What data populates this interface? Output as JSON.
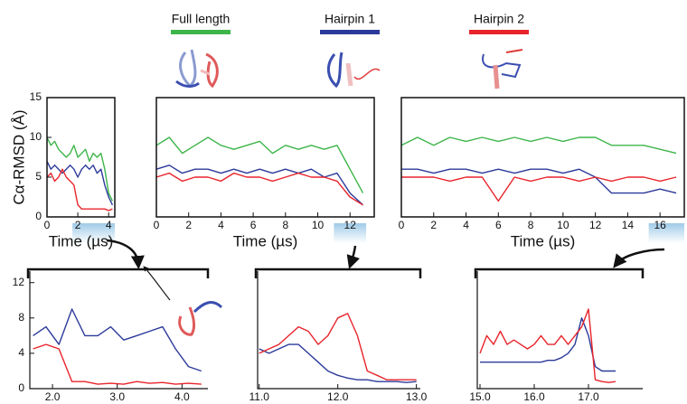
{
  "legend": [
    {
      "name": "Full length",
      "color": "#3db54a"
    },
    {
      "name": "Hairpin 1",
      "color": "#2b3a9a"
    },
    {
      "name": "Hairpin 2",
      "color": "#e8242b"
    }
  ],
  "chart_data": [
    {
      "type": "line",
      "xlabel": "Time (µs)",
      "ylabel": "Cα-RMSD (Å)",
      "x": [
        0,
        0.25,
        0.5,
        0.75,
        1,
        1.25,
        1.5,
        1.75,
        2,
        2.25,
        2.5,
        2.75,
        3,
        3.25,
        3.5,
        3.75,
        4,
        4.25
      ],
      "series": [
        {
          "color": "#3db54a",
          "values": [
            10,
            9,
            9.5,
            8.5,
            8,
            7.5,
            8,
            9,
            7.5,
            8,
            8.5,
            7,
            8,
            7.5,
            8,
            6,
            3,
            2
          ]
        },
        {
          "color": "#2b3a9a",
          "values": [
            7,
            6,
            6.5,
            6,
            5.5,
            6,
            6.5,
            6,
            5,
            6,
            6.5,
            6,
            6.5,
            5.5,
            6,
            4,
            2.5,
            1.5
          ]
        },
        {
          "color": "#e8242b",
          "values": [
            5,
            5.5,
            4.5,
            5,
            6,
            5,
            4.5,
            4,
            1.5,
            1,
            1,
            1,
            1,
            1,
            1,
            1,
            0.8,
            1
          ]
        }
      ],
      "xlim": [
        0,
        4.4
      ],
      "ylim": [
        0,
        15
      ],
      "xticks": [
        0,
        2,
        4
      ],
      "yticks": [
        0,
        5,
        10,
        15
      ],
      "highlight": [
        1.65,
        4.4
      ]
    },
    {
      "type": "line",
      "xlabel": "Time (µs)",
      "x": [
        0,
        0.8,
        1.6,
        2.4,
        3.2,
        4,
        4.8,
        5.6,
        6.4,
        7.2,
        8,
        8.8,
        9.6,
        10.4,
        11.2,
        12,
        12.8
      ],
      "series": [
        {
          "color": "#3db54a",
          "values": [
            9,
            10,
            8,
            9,
            10,
            9,
            8.5,
            9,
            9.5,
            8,
            9,
            8.5,
            9,
            8.5,
            9,
            6,
            3
          ]
        },
        {
          "color": "#2b3a9a",
          "values": [
            6,
            6.5,
            5.5,
            6,
            6,
            5.5,
            6,
            5.5,
            6,
            5.5,
            6,
            5.5,
            6,
            5,
            5.5,
            3,
            1.5
          ]
        },
        {
          "color": "#e8242b",
          "values": [
            5,
            5.5,
            4.5,
            5,
            5,
            4.5,
            5.5,
            5,
            5,
            4.5,
            5,
            5.5,
            5,
            5,
            4.5,
            2.5,
            1.5
          ]
        }
      ],
      "xlim": [
        0,
        13.5
      ],
      "ylim": [
        0,
        15
      ],
      "xticks": [
        0,
        2,
        4,
        6,
        8,
        10,
        12
      ],
      "highlight": [
        11,
        13
      ]
    },
    {
      "type": "line",
      "xlabel": "Time (µs)",
      "x": [
        0,
        1,
        2,
        3,
        4,
        5,
        6,
        7,
        8,
        9,
        10,
        11,
        12,
        13,
        14,
        15,
        16,
        17
      ],
      "series": [
        {
          "color": "#3db54a",
          "values": [
            9,
            10,
            9,
            10,
            9.5,
            10,
            9.5,
            10,
            9.5,
            10,
            9.5,
            10,
            10,
            9,
            9,
            9,
            8.5,
            8
          ]
        },
        {
          "color": "#2b3a9a",
          "values": [
            6,
            6,
            5.5,
            6,
            6,
            5.5,
            6,
            5.5,
            6,
            6,
            5.5,
            6,
            5,
            3,
            3,
            3,
            3.5,
            3
          ]
        },
        {
          "color": "#e8242b",
          "values": [
            5,
            5,
            5,
            4.5,
            5,
            5,
            2,
            5,
            4.5,
            5,
            5,
            4.5,
            5,
            4.5,
            5,
            5,
            4.5,
            5
          ]
        }
      ],
      "xlim": [
        0,
        17.5
      ],
      "ylim": [
        0,
        15
      ],
      "xticks": [
        0,
        2,
        4,
        6,
        8,
        10,
        12,
        14,
        16
      ],
      "highlight": [
        15.3,
        18
      ]
    },
    {
      "type": "line",
      "x": [
        1.7,
        1.9,
        2.1,
        2.3,
        2.5,
        2.7,
        2.9,
        3.1,
        3.3,
        3.5,
        3.7,
        3.9,
        4.1,
        4.3
      ],
      "series": [
        {
          "color": "#2b3a9a",
          "values": [
            6,
            7,
            5,
            9,
            6,
            6,
            7,
            5.5,
            6,
            6.5,
            7,
            4.5,
            2.5,
            2
          ]
        },
        {
          "color": "#e8242b",
          "values": [
            4.5,
            5,
            4.5,
            0.8,
            0.8,
            0.5,
            0.6,
            0.5,
            0.8,
            0.6,
            0.7,
            0.5,
            0.6,
            0.5
          ]
        }
      ],
      "xlim": [
        1.65,
        4.4
      ],
      "ylim": [
        0,
        13.3
      ],
      "xticks": [
        {
          "value": 2,
          "label": "2.0"
        },
        {
          "value": 3,
          "label": "3.0"
        },
        {
          "value": 4,
          "label": "4.0"
        }
      ],
      "yticks": [
        0,
        4,
        8,
        12
      ]
    },
    {
      "type": "line",
      "x": [
        11,
        11.125,
        11.25,
        11.375,
        11.5,
        11.625,
        11.75,
        11.875,
        12,
        12.125,
        12.25,
        12.375,
        12.5,
        12.625,
        12.75,
        12.875,
        13
      ],
      "series": [
        {
          "color": "#2b3a9a",
          "values": [
            4.5,
            4,
            4.5,
            5,
            5,
            4,
            3,
            2,
            1.5,
            1.2,
            1,
            1,
            0.8,
            0.8,
            0.8,
            0.7,
            0.8
          ]
        },
        {
          "color": "#e8242b",
          "values": [
            4,
            4.5,
            5,
            6,
            7,
            6.5,
            5,
            6,
            8,
            8.5,
            6,
            2,
            1.5,
            1,
            1,
            1,
            1
          ]
        }
      ],
      "xlim": [
        10.98,
        13.05
      ],
      "ylim": [
        0,
        13.3
      ],
      "xticks": [
        {
          "value": 11,
          "label": "11.0"
        },
        {
          "value": 12,
          "label": "12.0"
        },
        {
          "value": 13,
          "label": "13.0"
        }
      ]
    },
    {
      "type": "line",
      "x": [
        15,
        15.125,
        15.25,
        15.375,
        15.5,
        15.625,
        15.75,
        15.875,
        16,
        16.125,
        16.25,
        16.375,
        16.5,
        16.625,
        16.75,
        16.875,
        17,
        17.125,
        17.25,
        17.375,
        17.5
      ],
      "series": [
        {
          "color": "#2b3a9a",
          "values": [
            3,
            3,
            3,
            3,
            3,
            3,
            3,
            3,
            3,
            3,
            3.2,
            3.2,
            3.5,
            4,
            5,
            8,
            6,
            2.5,
            2,
            2,
            2
          ]
        },
        {
          "color": "#e8242b",
          "values": [
            4,
            6,
            5,
            6.5,
            5,
            5.5,
            5,
            4.5,
            5,
            6,
            5,
            5,
            6,
            5,
            6,
            7,
            9,
            1,
            0.8,
            0.7,
            0.8
          ]
        }
      ],
      "xlim": [
        14.95,
        18
      ],
      "ylim": [
        0,
        13.3
      ],
      "xticks": [
        {
          "value": 15,
          "label": "15.0"
        },
        {
          "value": 16,
          "label": "16.0"
        },
        {
          "value": 17,
          "label": "17.0"
        }
      ]
    }
  ]
}
